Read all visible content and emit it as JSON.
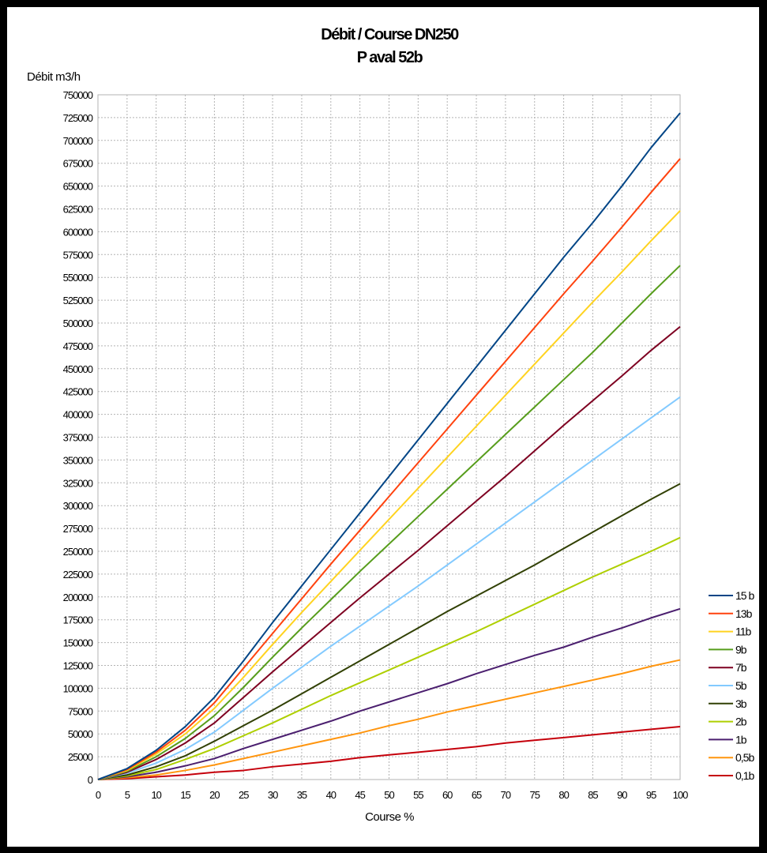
{
  "chart_data": {
    "type": "line",
    "title": "Débit / Course DN250",
    "subtitle": "P aval 52b",
    "xlabel": "Course %",
    "ylabel": "Débit m3/h",
    "xlim": [
      0,
      100
    ],
    "ylim": [
      0,
      750000
    ],
    "x_ticks": [
      0,
      5,
      10,
      15,
      20,
      25,
      30,
      35,
      40,
      45,
      50,
      55,
      60,
      65,
      70,
      75,
      80,
      85,
      90,
      95,
      100
    ],
    "y_ticks": [
      0,
      25000,
      50000,
      75000,
      100000,
      125000,
      150000,
      175000,
      200000,
      225000,
      250000,
      275000,
      300000,
      325000,
      350000,
      375000,
      400000,
      425000,
      450000,
      475000,
      500000,
      525000,
      550000,
      575000,
      600000,
      625000,
      650000,
      675000,
      700000,
      725000,
      750000
    ],
    "grid": true,
    "legend_position": "right",
    "x": [
      0,
      5,
      10,
      15,
      20,
      25,
      30,
      35,
      40,
      45,
      50,
      55,
      60,
      65,
      70,
      75,
      80,
      85,
      90,
      95,
      100
    ],
    "series": [
      {
        "name": "15 b",
        "color": "#004586",
        "values": [
          0,
          12000,
          32000,
          58000,
          90000,
          130000,
          172000,
          212000,
          252000,
          292000,
          332000,
          372000,
          412000,
          452000,
          492000,
          532000,
          572000,
          610000,
          650000,
          692000,
          730000
        ]
      },
      {
        "name": "13b",
        "color": "#ff420e",
        "values": [
          0,
          11000,
          30000,
          54000,
          84000,
          122000,
          160000,
          198000,
          236000,
          273000,
          310000,
          347000,
          384000,
          421000,
          458000,
          495000,
          532000,
          568000,
          605000,
          643000,
          680000
        ]
      },
      {
        "name": "11b",
        "color": "#ffd320",
        "values": [
          0,
          10000,
          28000,
          50000,
          78000,
          112000,
          148000,
          183000,
          217000,
          251000,
          285000,
          319000,
          353000,
          387000,
          421000,
          455000,
          489000,
          523000,
          556000,
          590000,
          623000
        ]
      },
      {
        "name": "9b",
        "color": "#579d1c",
        "values": [
          0,
          9000,
          25000,
          45000,
          70000,
          101000,
          134000,
          166000,
          197000,
          228000,
          258000,
          288000,
          318000,
          348000,
          378000,
          408000,
          438000,
          468000,
          500000,
          532000,
          563000
        ]
      },
      {
        "name": "7b",
        "color": "#7e0021",
        "values": [
          0,
          8000,
          22000,
          40000,
          62000,
          90000,
          118000,
          145000,
          172000,
          199000,
          225000,
          251000,
          278000,
          305000,
          332000,
          360000,
          388000,
          415000,
          442000,
          470000,
          496000
        ]
      },
      {
        "name": "5b",
        "color": "#83caff",
        "values": [
          0,
          7000,
          18000,
          33000,
          52000,
          76000,
          100000,
          123000,
          146000,
          168000,
          190000,
          212000,
          235000,
          258000,
          281000,
          304000,
          327000,
          350000,
          373000,
          396000,
          419000
        ]
      },
      {
        "name": "3b",
        "color": "#314004",
        "values": [
          0,
          5000,
          14000,
          26000,
          42000,
          59000,
          76000,
          94000,
          112000,
          130000,
          148000,
          166000,
          184000,
          201000,
          218000,
          235000,
          253000,
          271000,
          289000,
          307000,
          324000
        ]
      },
      {
        "name": "2b",
        "color": "#aecf00",
        "values": [
          0,
          4000,
          11000,
          22000,
          34000,
          48000,
          62000,
          77000,
          92000,
          106000,
          120000,
          134000,
          148000,
          162000,
          177000,
          192000,
          207000,
          222000,
          236000,
          250000,
          265000
        ]
      },
      {
        "name": "1b",
        "color": "#4b1f6f",
        "values": [
          0,
          3000,
          8000,
          15000,
          23000,
          34000,
          44000,
          54000,
          64000,
          75000,
          85000,
          95000,
          105000,
          116000,
          126000,
          136000,
          145000,
          156000,
          166000,
          177000,
          187000
        ]
      },
      {
        "name": "0,5b",
        "color": "#ff950e",
        "values": [
          0,
          2000,
          5000,
          10000,
          16000,
          23000,
          30000,
          37000,
          44000,
          51000,
          59000,
          66000,
          74000,
          81000,
          88000,
          95000,
          102000,
          109000,
          116000,
          124000,
          131000
        ]
      },
      {
        "name": "0,1b",
        "color": "#c5000b",
        "values": [
          0,
          1000,
          3000,
          5000,
          8000,
          10000,
          14000,
          17000,
          20000,
          24000,
          27000,
          30000,
          33000,
          36000,
          40000,
          43000,
          46000,
          49000,
          52000,
          55000,
          58000
        ]
      }
    ]
  }
}
